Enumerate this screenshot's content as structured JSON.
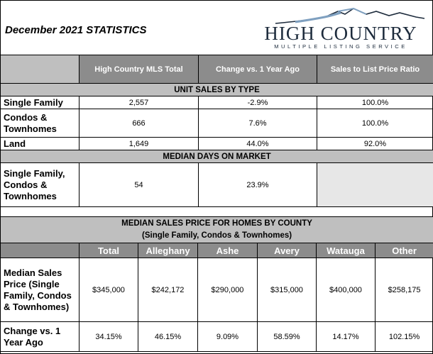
{
  "header": {
    "title": "December 2021 STATISTICS",
    "logo_word": "HIGH COUNTRY",
    "logo_sub": "MULTIPLE LISTING SERVICE"
  },
  "stats_table": {
    "columns": [
      "High Country MLS Total",
      "Change vs. 1 Year Ago",
      "Sales to List Price Ratio"
    ],
    "unit_sales_title": "UNIT SALES BY TYPE",
    "unit_sales": [
      {
        "label": "Single Family",
        "total": "2,557",
        "change": "-2.9%",
        "ratio": "100.0%"
      },
      {
        "label": "Condos & Townhomes",
        "total": "666",
        "change": "7.6%",
        "ratio": "100.0%"
      },
      {
        "label": "Land",
        "total": "1,649",
        "change": "44.0%",
        "ratio": "92.0%"
      }
    ],
    "dom_title": "MEDIAN DAYS ON MARKET",
    "dom_row": {
      "label": "Single Family, Condos & Townhomes",
      "total": "54",
      "change": "23.9%"
    }
  },
  "county_table": {
    "title_line1": "MEDIAN SALES PRICE FOR HOMES BY COUNTY",
    "title_line2": "(Single Family, Condos & Townhomes)",
    "columns": [
      "Total",
      "Alleghany",
      "Ashe",
      "Avery",
      "Watauga",
      "Other"
    ],
    "price_row": {
      "label": "Median Sales Price (Single Family, Condos & Townhomes)",
      "values": [
        "$345,000",
        "$242,172",
        "$290,000",
        "$315,000",
        "$400,000",
        "$258,175"
      ]
    },
    "change_row": {
      "label": "Change vs. 1 Year Ago",
      "values": [
        "34.15%",
        "46.15%",
        "9.09%",
        "58.59%",
        "14.17%",
        "102.15%"
      ]
    }
  }
}
